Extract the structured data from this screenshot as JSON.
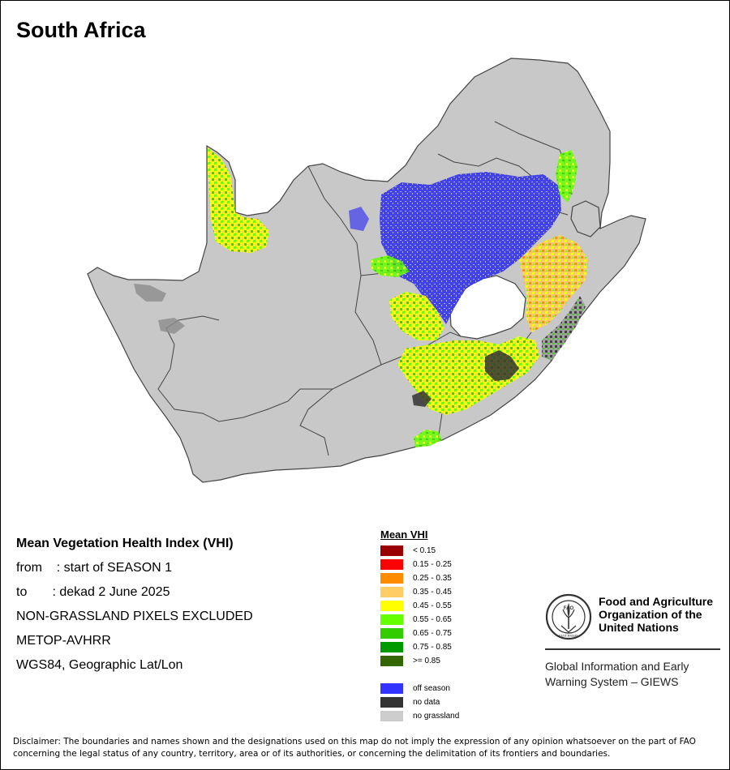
{
  "map": {
    "title": "South Africa"
  },
  "info": {
    "heading": "Mean Vegetation Health Index (VHI)",
    "from_row": "from    : start of SEASON 1",
    "to_row": "to       : dekad 2 June 2025",
    "exclusion": "NON-GRASSLAND PIXELS EXCLUDED",
    "sensor": "METOP-AVHRR",
    "projection": "WGS84, Geographic Lat/Lon"
  },
  "legend": {
    "title": "Mean VHI",
    "classes": [
      {
        "label": "< 0.15",
        "color": "#990000"
      },
      {
        "label": "0.15 - 0.25",
        "color": "#ff0000"
      },
      {
        "label": "0.25 - 0.35",
        "color": "#ff8c00"
      },
      {
        "label": "0.35 - 0.45",
        "color": "#ffcc66"
      },
      {
        "label": "0.45 - 0.55",
        "color": "#ffff00"
      },
      {
        "label": "0.55 - 0.65",
        "color": "#66ff00"
      },
      {
        "label": "0.65 - 0.75",
        "color": "#33cc00"
      },
      {
        "label": "0.75 - 0.85",
        "color": "#009900"
      },
      {
        "label": ">= 0.85",
        "color": "#336600"
      }
    ],
    "extra": [
      {
        "label": "off season",
        "color": "#3333ff"
      },
      {
        "label": "no data",
        "color": "#333333"
      },
      {
        "label": "no grassland",
        "color": "#cccccc"
      }
    ]
  },
  "org": {
    "name_line1": "Food and Agriculture",
    "name_line2": "Organization of the",
    "name_line3": "United Nations",
    "logo_text": "FAO",
    "logo_motto": "FIAT PANIS",
    "giews_line1": "Global Information and Early",
    "giews_line2": "Warning System – GIEWS"
  },
  "disclaimer": {
    "line1": "Disclaimer: The boundaries and names shown and the designations used on this map do not imply the expression of any opinion whatsoever on the part of FAO",
    "line2": "concerning the legal status of any country, territory, area or of its authorities, or concerning the delimitation of its frontiers and boundaries."
  }
}
